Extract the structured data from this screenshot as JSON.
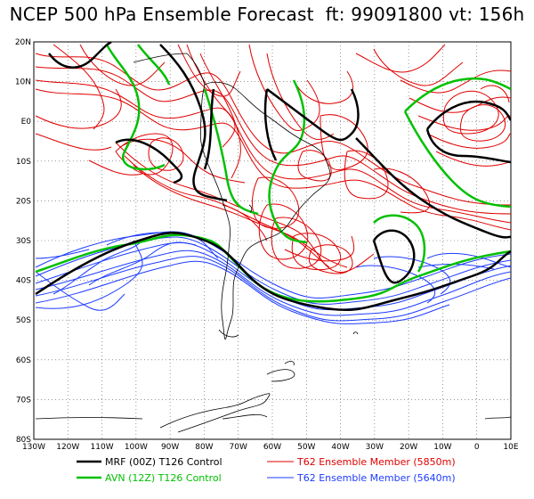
{
  "title": "NCEP 500 hPa Ensemble Forecast  ft: 99091800 vt: 156h",
  "map": {
    "lat_labels": [
      "20N",
      "10N",
      "E0",
      "10S",
      "20S",
      "30S",
      "40S",
      "50S",
      "60S",
      "70S",
      "80S"
    ],
    "lon_labels": [
      "130W",
      "120W",
      "110W",
      "100W",
      "90W",
      "80W",
      "70W",
      "60W",
      "50W",
      "40W",
      "30W",
      "20W",
      "10W",
      "0",
      "10E"
    ],
    "lon_range": [
      -130,
      10
    ],
    "lat_range": [
      -80,
      20
    ],
    "grid": true
  },
  "legend": [
    {
      "label": "MRF (00Z) T126 Control",
      "color": "#000000"
    },
    {
      "label": "AVN (12Z) T126 Control",
      "color": "#00c000"
    },
    {
      "label": "T62 Ensemble Member (5850m)",
      "color": "#e00000"
    },
    {
      "label": "T62 Ensemble Member (5640m)",
      "color": "#1e3cff"
    }
  ],
  "colors": {
    "control_mrf": "#000000",
    "control_avn": "#00c000",
    "member_5850": "#e00000",
    "member_5640": "#1e3cff",
    "coast": "#000000",
    "grid": "#555555"
  }
}
